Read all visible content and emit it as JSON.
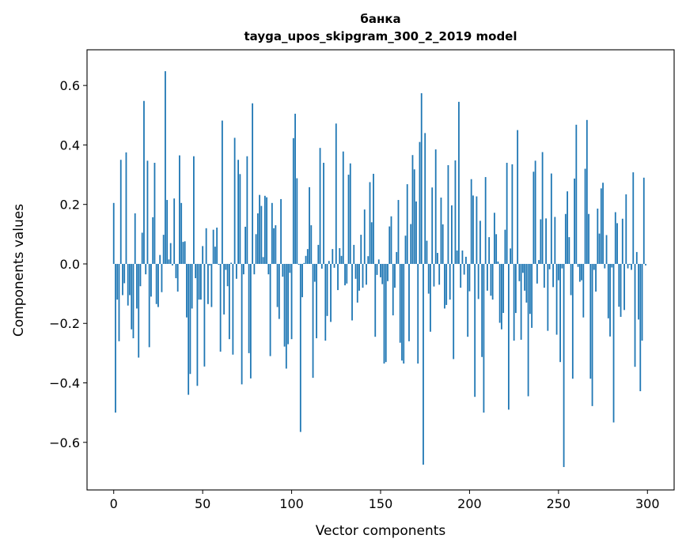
{
  "chart_data": {
    "type": "bar",
    "title": "банка",
    "subtitle": "tayga_upos_skipgram_300_2_2019 model",
    "xlabel": "Vector components",
    "ylabel": "Components values",
    "xlim": [
      -15,
      315
    ],
    "ylim": [
      -0.76,
      0.72
    ],
    "xticks": [
      0,
      50,
      100,
      150,
      200,
      250,
      300
    ],
    "xtick_labels": [
      "0",
      "50",
      "100",
      "150",
      "200",
      "250",
      "300"
    ],
    "yticks": [
      -0.6,
      -0.4,
      -0.2,
      0.0,
      0.2,
      0.4,
      0.6
    ],
    "ytick_labels": [
      "−0.6",
      "−0.4",
      "−0.2",
      "0.0",
      "0.2",
      "0.4",
      "0.6"
    ],
    "grid": false,
    "color": "#1f77b4",
    "x_start": 0,
    "values": [
      0.205,
      -0.5,
      -0.12,
      -0.26,
      0.35,
      -0.105,
      -0.065,
      0.375,
      -0.14,
      -0.105,
      -0.22,
      -0.25,
      0.17,
      -0.15,
      -0.315,
      -0.075,
      0.105,
      0.548,
      -0.035,
      0.347,
      -0.28,
      -0.11,
      0.157,
      0.34,
      -0.135,
      -0.145,
      0.03,
      -0.095,
      0.098,
      0.648,
      0.215,
      0.015,
      0.07,
      -0.005,
      0.22,
      -0.048,
      -0.093,
      0.365,
      0.205,
      0.074,
      0.076,
      -0.18,
      -0.44,
      -0.37,
      -0.15,
      0.362,
      -0.048,
      -0.41,
      -0.12,
      -0.12,
      0.06,
      -0.345,
      0.12,
      -0.135,
      -0.005,
      -0.145,
      0.115,
      0.058,
      0.122,
      -0.003,
      -0.295,
      0.482,
      -0.17,
      -0.02,
      -0.075,
      -0.253,
      0.004,
      -0.305,
      0.424,
      -0.05,
      0.35,
      0.302,
      -0.405,
      -0.035,
      0.125,
      0.362,
      -0.3,
      -0.385,
      0.54,
      -0.035,
      0.1,
      0.17,
      0.232,
      0.195,
      0.023,
      0.229,
      0.224,
      -0.035,
      -0.31,
      0.205,
      0.12,
      0.13,
      -0.145,
      -0.185,
      0.218,
      -0.043,
      -0.278,
      -0.352,
      -0.27,
      -0.03,
      -0.253,
      0.423,
      0.505,
      0.288,
      -0.003,
      -0.565,
      -0.112,
      0.003,
      0.027,
      0.05,
      0.258,
      0.13,
      -0.383,
      -0.06,
      -0.25,
      0.064,
      0.39,
      -0.016,
      0.34,
      -0.258,
      -0.175,
      0.01,
      -0.195,
      0.05,
      -0.013,
      0.472,
      -0.088,
      0.053,
      0.027,
      0.378,
      -0.072,
      -0.066,
      0.3,
      0.338,
      -0.19,
      0.064,
      -0.05,
      -0.13,
      -0.09,
      0.098,
      -0.08,
      0.183,
      -0.07,
      0.026,
      0.275,
      0.14,
      0.303,
      -0.245,
      -0.037,
      0.015,
      -0.045,
      -0.068,
      -0.335,
      -0.33,
      -0.058,
      0.126,
      0.16,
      -0.173,
      -0.08,
      0.04,
      0.215,
      -0.265,
      -0.325,
      -0.335,
      0.095,
      0.268,
      -0.26,
      0.134,
      0.366,
      0.318,
      0.21,
      -0.335,
      0.41,
      0.574,
      -0.675,
      0.44,
      0.078,
      -0.1,
      -0.228,
      0.257,
      -0.076,
      0.385,
      0.037,
      -0.07,
      0.223,
      0.133,
      -0.15,
      -0.138,
      0.332,
      -0.12,
      0.197,
      -0.32,
      0.348,
      0.045,
      0.545,
      -0.08,
      0.045,
      -0.036,
      0.024,
      -0.245,
      -0.092,
      0.285,
      0.23,
      -0.447,
      0.227,
      -0.118,
      0.145,
      -0.313,
      -0.5,
      0.292,
      -0.09,
      0.09,
      -0.107,
      -0.12,
      0.172,
      0.1,
      0.008,
      -0.198,
      -0.22,
      -0.165,
      0.115,
      0.34,
      -0.49,
      0.052,
      0.335,
      -0.258,
      -0.165,
      0.45,
      -0.058,
      -0.255,
      -0.03,
      -0.09,
      -0.13,
      -0.445,
      -0.168,
      -0.215,
      0.31,
      0.347,
      -0.066,
      0.013,
      0.15,
      0.376,
      -0.08,
      0.153,
      -0.225,
      -0.018,
      0.304,
      -0.078,
      0.158,
      -0.238,
      -0.055,
      -0.33,
      -0.015,
      -0.683,
      0.168,
      0.244,
      0.09,
      -0.105,
      -0.386,
      0.287,
      0.468,
      -0.01,
      -0.06,
      -0.055,
      -0.18,
      0.32,
      0.484,
      0.168,
      -0.386,
      -0.478,
      -0.02,
      -0.093,
      0.186,
      0.102,
      0.254,
      0.273,
      -0.015,
      0.097,
      -0.183,
      -0.244,
      -0.012,
      -0.533,
      0.174,
      0.137,
      -0.144,
      -0.178,
      0.152,
      -0.155,
      0.234,
      -0.015,
      -0.003,
      -0.02,
      0.308,
      -0.346,
      0.04,
      -0.187,
      -0.428,
      -0.258,
      0.29,
      -0.005
    ]
  }
}
